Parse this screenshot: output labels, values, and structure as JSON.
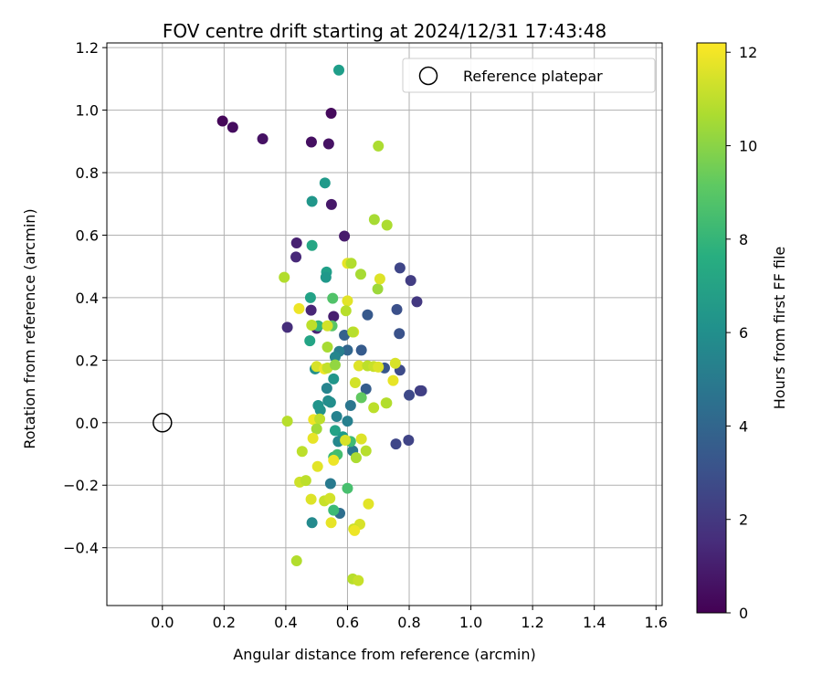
{
  "chart_data": {
    "type": "scatter",
    "title": "FOV centre drift starting at 2024/12/31 17:43:48",
    "xlabel": "Angular distance from reference (arcmin)",
    "ylabel": "Rotation from reference (arcmin)",
    "xlim": [
      -0.18,
      1.62
    ],
    "ylim": [
      -0.585,
      1.215
    ],
    "xticks": [
      0.0,
      0.2,
      0.4,
      0.6,
      0.8,
      1.0,
      1.2,
      1.4,
      1.6
    ],
    "xtick_labels": [
      "0.0",
      "0.2",
      "0.4",
      "0.6",
      "0.8",
      "1.0",
      "1.2",
      "1.4",
      "1.6"
    ],
    "yticks": [
      -0.4,
      -0.2,
      0.0,
      0.2,
      0.4,
      0.6,
      0.8,
      1.0,
      1.2
    ],
    "ytick_labels": [
      "−0.4",
      "−0.2",
      "0.0",
      "0.2",
      "0.4",
      "0.6",
      "0.8",
      "1.0",
      "1.2"
    ],
    "grid": true,
    "legend": {
      "placement": "top-right",
      "entries": [
        "Reference platepar"
      ]
    },
    "reference": {
      "name": "Reference platepar",
      "x": 0.0,
      "y": 0.0
    },
    "colorbar": {
      "label": "Hours from first FF file",
      "range": [
        0,
        12.2
      ],
      "ticks": [
        0,
        2,
        4,
        6,
        8,
        10,
        12
      ],
      "tick_labels": [
        "0",
        "2",
        "4",
        "6",
        "8",
        "10",
        "12"
      ],
      "colormap": "viridis"
    },
    "series": [
      {
        "points": [
          [
            0.195,
            0.965,
            0.2
          ],
          [
            0.228,
            0.945,
            0.4
          ],
          [
            0.325,
            0.908,
            0.6
          ],
          [
            0.547,
            0.99,
            0.3
          ],
          [
            0.483,
            0.898,
            0.5
          ],
          [
            0.539,
            0.892,
            0.6
          ],
          [
            0.548,
            0.698,
            0.8
          ],
          [
            0.59,
            0.597,
            0.9
          ],
          [
            0.435,
            0.575,
            1.1
          ],
          [
            0.433,
            0.53,
            1.4
          ],
          [
            0.482,
            0.36,
            1.3
          ],
          [
            0.555,
            0.34,
            1.0
          ],
          [
            0.405,
            0.305,
            1.6
          ],
          [
            0.5,
            0.302,
            1.2
          ],
          [
            0.572,
            1.128,
            6.8
          ],
          [
            0.527,
            0.767,
            6.6
          ],
          [
            0.485,
            0.708,
            6.4
          ],
          [
            0.485,
            0.567,
            7.2
          ],
          [
            0.532,
            0.482,
            6.9
          ],
          [
            0.53,
            0.465,
            6.5
          ],
          [
            0.48,
            0.4,
            7.0
          ],
          [
            0.478,
            0.262,
            7.1
          ],
          [
            0.77,
            0.495,
            2.6
          ],
          [
            0.805,
            0.455,
            2.2
          ],
          [
            0.825,
            0.387,
            2.0
          ],
          [
            0.76,
            0.362,
            3.0
          ],
          [
            0.665,
            0.345,
            3.4
          ],
          [
            0.768,
            0.285,
            3.1
          ],
          [
            0.59,
            0.28,
            3.8
          ],
          [
            0.645,
            0.232,
            3.5
          ],
          [
            0.6,
            0.232,
            4.0
          ],
          [
            0.72,
            0.175,
            3.3
          ],
          [
            0.77,
            0.168,
            2.8
          ],
          [
            0.8,
            0.088,
            2.7
          ],
          [
            0.84,
            0.102,
            2.4
          ],
          [
            0.835,
            0.102,
            2.3
          ],
          [
            0.66,
            0.108,
            3.6
          ],
          [
            0.757,
            -0.068,
            2.6
          ],
          [
            0.798,
            -0.056,
            2.5
          ],
          [
            0.575,
            -0.29,
            4.4
          ],
          [
            0.617,
            -0.09,
            4.9
          ],
          [
            0.545,
            -0.195,
            5.0
          ],
          [
            0.485,
            -0.32,
            5.8
          ],
          [
            0.573,
            0.228,
            5.2
          ],
          [
            0.56,
            0.21,
            5.6
          ],
          [
            0.533,
            0.11,
            5.5
          ],
          [
            0.537,
            0.07,
            5.9
          ],
          [
            0.565,
            0.02,
            5.4
          ],
          [
            0.6,
            0.005,
            5.3
          ],
          [
            0.61,
            0.055,
            4.8
          ],
          [
            0.545,
            0.065,
            6.0
          ],
          [
            0.512,
            0.04,
            6.2
          ],
          [
            0.505,
            0.055,
            6.3
          ],
          [
            0.495,
            0.172,
            6.1
          ],
          [
            0.555,
            0.14,
            6.4
          ],
          [
            0.56,
            -0.025,
            7.0
          ],
          [
            0.585,
            -0.045,
            6.7
          ],
          [
            0.57,
            -0.06,
            5.7
          ],
          [
            0.555,
            -0.11,
            8.2
          ],
          [
            0.567,
            -0.102,
            8.5
          ],
          [
            0.61,
            -0.06,
            8.4
          ],
          [
            0.6,
            -0.21,
            8.6
          ],
          [
            0.555,
            -0.28,
            8.3
          ],
          [
            0.552,
            0.398,
            8.8
          ],
          [
            0.505,
            0.31,
            8.0
          ],
          [
            0.55,
            0.31,
            9.0
          ],
          [
            0.645,
            0.08,
            9.2
          ],
          [
            0.6,
            0.51,
            11.8
          ],
          [
            0.612,
            0.51,
            10.8
          ],
          [
            0.643,
            0.475,
            10.6
          ],
          [
            0.698,
            0.428,
            10.4
          ],
          [
            0.705,
            0.46,
            11.6
          ],
          [
            0.395,
            0.465,
            10.8
          ],
          [
            0.7,
            0.885,
            10.7
          ],
          [
            0.687,
            0.65,
            10.6
          ],
          [
            0.728,
            0.632,
            10.7
          ],
          [
            0.443,
            0.365,
            11.9
          ],
          [
            0.6,
            0.39,
            11.7
          ],
          [
            0.595,
            0.358,
            10.9
          ],
          [
            0.484,
            0.312,
            11.0
          ],
          [
            0.535,
            0.31,
            11.4
          ],
          [
            0.62,
            0.29,
            11.8
          ],
          [
            0.617,
            0.29,
            10.9
          ],
          [
            0.535,
            0.242,
            10.6
          ],
          [
            0.5,
            0.18,
            11.5
          ],
          [
            0.525,
            0.172,
            11.9
          ],
          [
            0.535,
            0.175,
            11.1
          ],
          [
            0.56,
            0.185,
            10.2
          ],
          [
            0.637,
            0.182,
            11.6
          ],
          [
            0.665,
            0.182,
            11.0
          ],
          [
            0.685,
            0.18,
            11.2
          ],
          [
            0.7,
            0.178,
            11.6
          ],
          [
            0.755,
            0.19,
            11.5
          ],
          [
            0.748,
            0.135,
            11.8
          ],
          [
            0.625,
            0.128,
            11.4
          ],
          [
            0.685,
            0.048,
            11.0
          ],
          [
            0.725,
            0.063,
            11.3
          ],
          [
            0.727,
            0.063,
            10.8
          ],
          [
            0.405,
            0.005,
            10.9
          ],
          [
            0.49,
            0.01,
            11.9
          ],
          [
            0.51,
            0.012,
            11.0
          ],
          [
            0.5,
            -0.02,
            10.5
          ],
          [
            0.488,
            -0.05,
            11.8
          ],
          [
            0.453,
            -0.092,
            11.0
          ],
          [
            0.503,
            -0.14,
            11.7
          ],
          [
            0.555,
            -0.12,
            11.9
          ],
          [
            0.593,
            -0.056,
            11.5
          ],
          [
            0.628,
            -0.112,
            10.7
          ],
          [
            0.645,
            -0.052,
            11.6
          ],
          [
            0.66,
            -0.09,
            10.9
          ],
          [
            0.445,
            -0.19,
            11.3
          ],
          [
            0.465,
            -0.185,
            11.0
          ],
          [
            0.482,
            -0.245,
            11.6
          ],
          [
            0.525,
            -0.25,
            11.2
          ],
          [
            0.543,
            -0.242,
            11.4
          ],
          [
            0.547,
            -0.32,
            11.8
          ],
          [
            0.668,
            -0.26,
            11.7
          ],
          [
            0.64,
            -0.325,
            11.5
          ],
          [
            0.62,
            -0.34,
            11.3
          ],
          [
            0.623,
            -0.345,
            11.9
          ],
          [
            0.435,
            -0.442,
            10.8
          ],
          [
            0.617,
            -0.5,
            10.9
          ],
          [
            0.635,
            -0.505,
            11.2
          ]
        ]
      }
    ]
  }
}
